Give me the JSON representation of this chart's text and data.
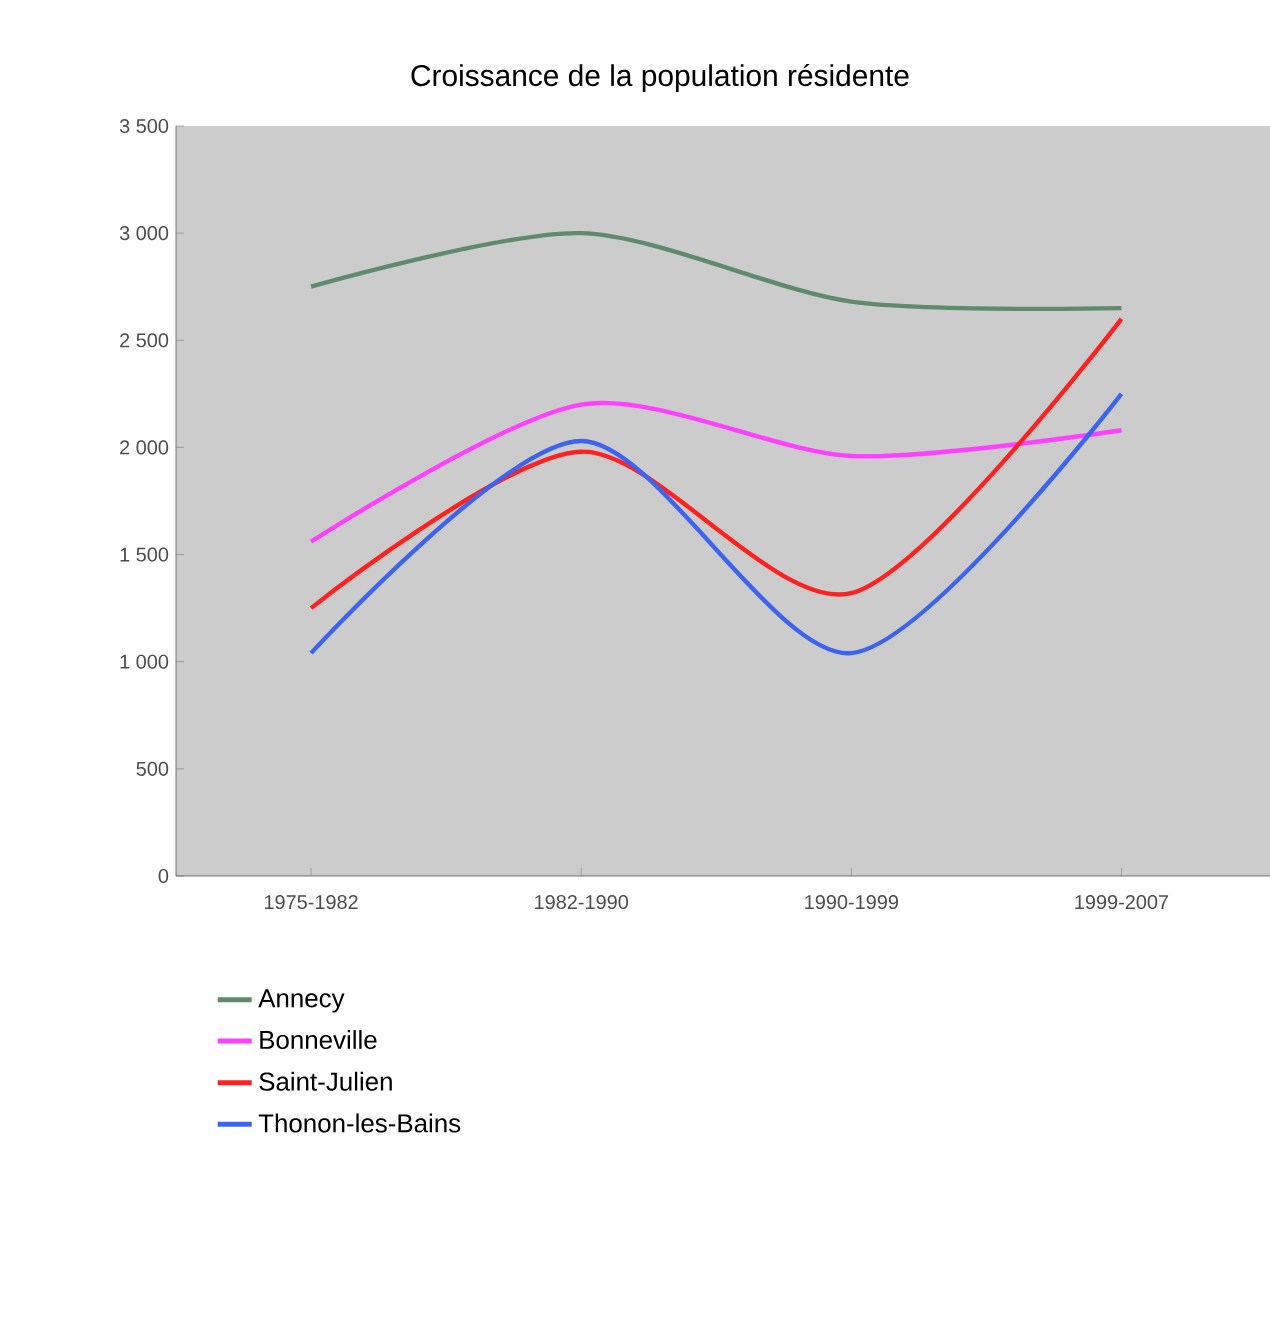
{
  "chart_data": {
    "type": "line",
    "title": "Croissance de la population résidente",
    "categories": [
      "1975-1982",
      "1982-1990",
      "1990-1999",
      "1999-2007"
    ],
    "series": [
      {
        "name": "Annecy",
        "color": "#5f8a6e",
        "values": [
          2750,
          3000,
          2680,
          2650
        ]
      },
      {
        "name": "Bonneville",
        "color": "#ff40ff",
        "values": [
          1560,
          2200,
          1960,
          2080
        ]
      },
      {
        "name": "Saint-Julien",
        "color": "#ff2020",
        "values": [
          1250,
          1980,
          1320,
          2600
        ]
      },
      {
        "name": "Thonon-les-Bains",
        "color": "#3c64f0",
        "values": [
          1040,
          2030,
          1040,
          2250
        ]
      }
    ],
    "ylim": [
      0,
      3500
    ],
    "yticks": [
      0,
      500,
      {
        "value": 1000,
        "label": "1 000"
      },
      {
        "value": 1500,
        "label": "1 500"
      },
      {
        "value": 2000,
        "label": "2 000"
      },
      {
        "value": 2500,
        "label": "2 500"
      },
      {
        "value": 3000,
        "label": "3 000"
      },
      {
        "value": 3500,
        "label": "3 500"
      }
    ],
    "legend": "bottom"
  }
}
